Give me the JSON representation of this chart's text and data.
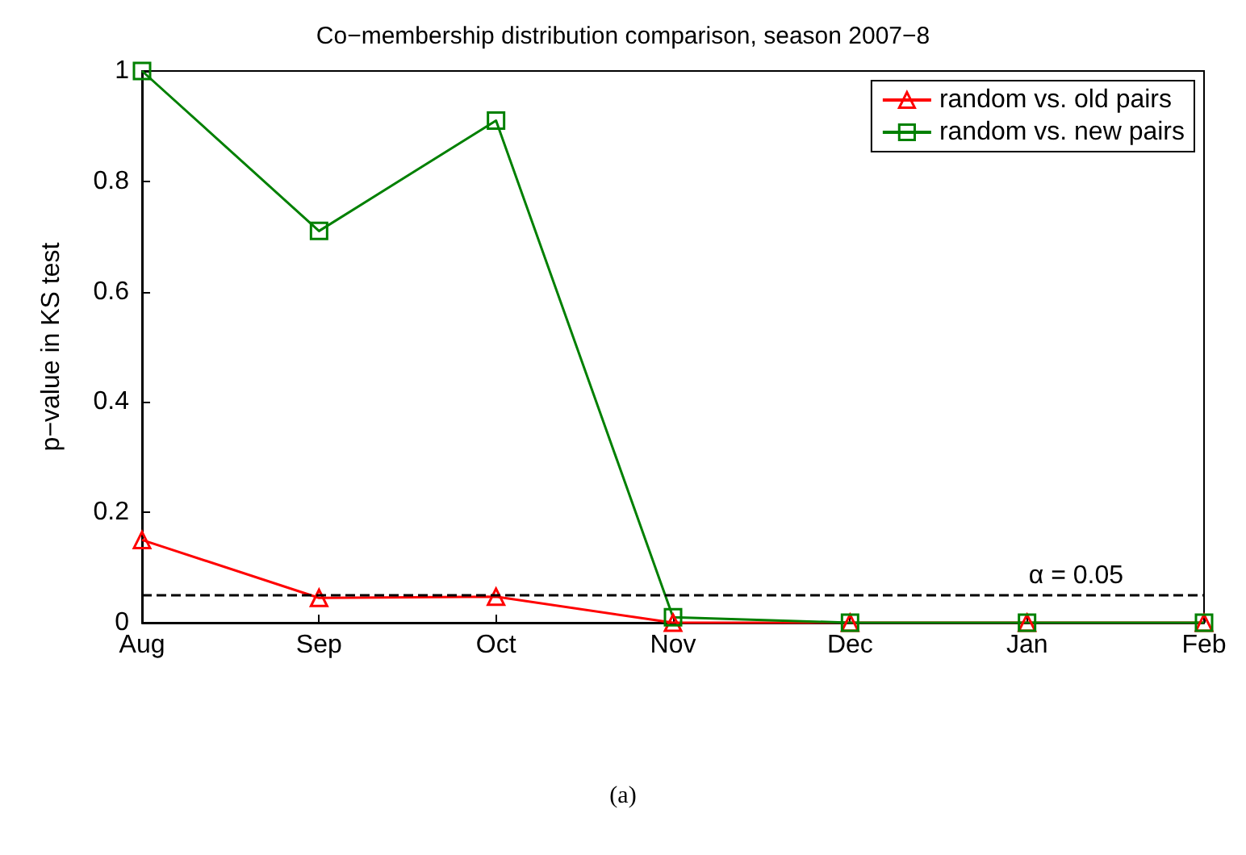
{
  "chart_data": {
    "type": "line",
    "title": "Co−membership distribution comparison, season 2007−8",
    "ylabel": "p−value in KS test",
    "categories": [
      "Aug",
      "Sep",
      "Oct",
      "Nov",
      "Dec",
      "Jan",
      "Feb"
    ],
    "series": [
      {
        "name": "random vs. old pairs",
        "color": "#ff0000",
        "marker": "triangle",
        "values": [
          0.15,
          0.045,
          0.047,
          0,
          0,
          0,
          0
        ]
      },
      {
        "name": "random vs. new pairs",
        "color": "#008000",
        "marker": "square",
        "values": [
          1,
          0.71,
          0.91,
          0.01,
          0,
          0,
          0
        ]
      }
    ],
    "ylim": [
      0,
      1
    ],
    "yticks": [
      0,
      0.2,
      0.4,
      0.6,
      0.8,
      1
    ],
    "grid": false,
    "legend": "top right",
    "line_style": "solid",
    "ref_lines": [
      {
        "axis": "y",
        "value": 0.05,
        "label": "α = 0.05",
        "color": "#000000",
        "line_style": "dashed"
      }
    ],
    "annotations": [
      "(a)"
    ]
  }
}
